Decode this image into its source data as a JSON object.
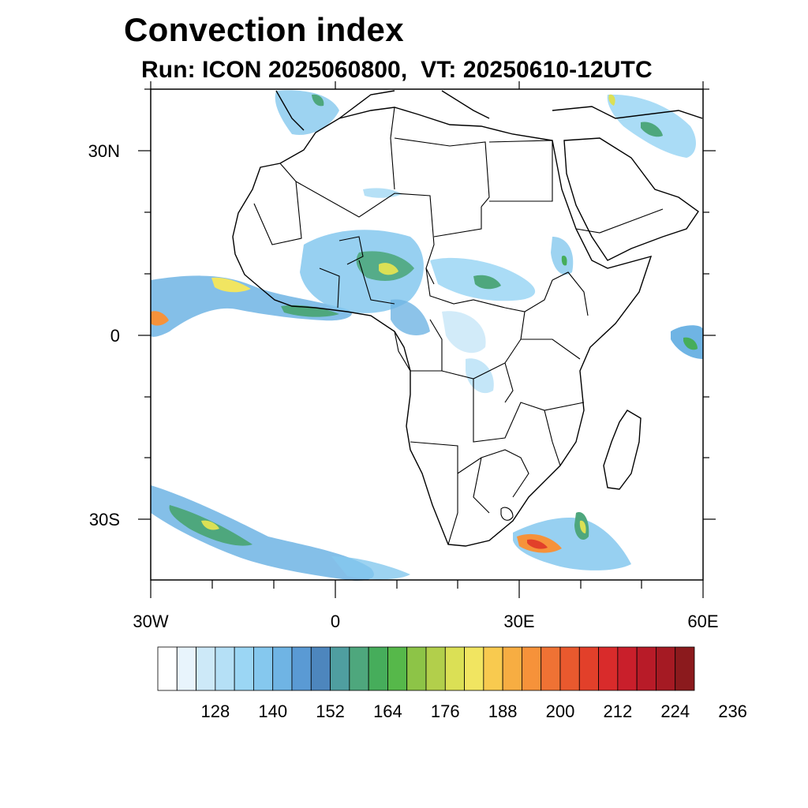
{
  "title": "Convection index",
  "subtitle": "Run: ICON 2025060800,  VT: 20250610-12UTC",
  "map": {
    "lon_range": [
      -30,
      60
    ],
    "lat_range": [
      -40,
      40
    ],
    "lat_labels": [
      "30N",
      "0",
      "30S"
    ],
    "lon_labels": [
      "30W",
      "0",
      "30E",
      "60E"
    ]
  },
  "colorbar": {
    "colors": [
      "#ffffff",
      "#e8f4fc",
      "#cde9f8",
      "#b5e0f6",
      "#9bd6f4",
      "#85c8ee",
      "#6fb4e4",
      "#5a9ad4",
      "#4d86bd",
      "#4f9ea0",
      "#4ea77d",
      "#46ad5b",
      "#56b84a",
      "#8dc447",
      "#b2cf4b",
      "#dbe055",
      "#f1e561",
      "#f8ca4f",
      "#f7ad42",
      "#f6923a",
      "#ef7234",
      "#e9592e",
      "#e2402a",
      "#d92b2b",
      "#c91f2b",
      "#b81b28",
      "#a51a23",
      "#8b1a1d"
    ],
    "tick_labels": [
      "128",
      "140",
      "152",
      "164",
      "176",
      "188",
      "200",
      "212",
      "224",
      "236"
    ]
  }
}
